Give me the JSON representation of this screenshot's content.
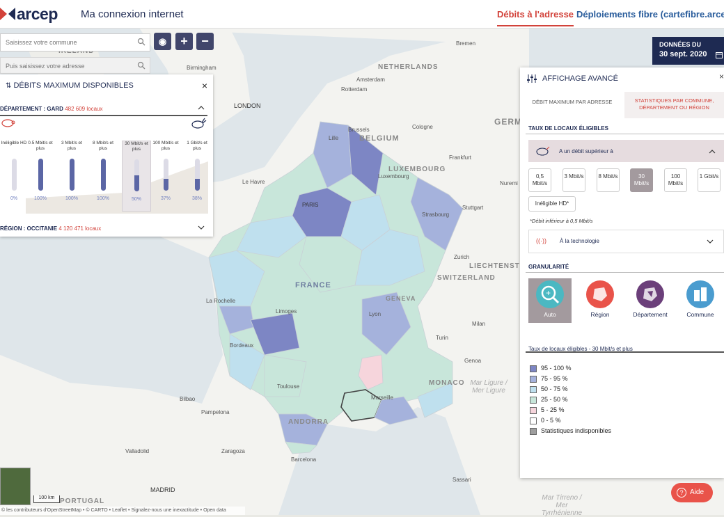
{
  "header": {
    "logo_text": "arcep",
    "app_title": "Ma connexion internet",
    "nav": [
      {
        "label": "Débits à l'adresse"
      },
      {
        "label": "Déploiements fibre (cartefibre.arcep.f"
      }
    ]
  },
  "search": {
    "commune_placeholder": "Saisissez votre commune",
    "address_placeholder": "Puis saisissez votre adresse"
  },
  "map_controls": {
    "locate": "◉",
    "zoom_in": "+",
    "zoom_out": "−"
  },
  "date_badge": {
    "line1": "DONNÉES DU",
    "line2": "30 sept. 2020"
  },
  "left_panel": {
    "title": "DÉBITS MAXIMUM DISPONIBLES",
    "close": "×",
    "department": {
      "label": "DÉPARTEMENT : GARD",
      "count": "482 609 locaux"
    },
    "region": {
      "label": "RÉGION : OCCITANIE",
      "count": "4 120 471 locaux"
    },
    "bars": [
      {
        "label": "Inéligible HD",
        "pct_label": "0%",
        "value": 0
      },
      {
        "label": "0.5 Mbit/s et plus",
        "pct_label": "100%",
        "value": 1
      },
      {
        "label": "3 Mbit/s et plus",
        "pct_label": "100%",
        "value": 1
      },
      {
        "label": "8 Mbit/s et plus",
        "pct_label": "100%",
        "value": 1
      },
      {
        "label": "30 Mbit/s et plus",
        "pct_label": "50%",
        "value": 0.5
      },
      {
        "label": "100 Mbit/s et plus",
        "pct_label": "37%",
        "value": 0.37
      },
      {
        "label": "1 Gbit/s et plus",
        "pct_label": "38%",
        "value": 0.38
      }
    ]
  },
  "right_panel": {
    "title": "AFFICHAGE AVANCÉ",
    "close": "×",
    "tabs": [
      {
        "label": "DÉBIT MAXIMUM PAR ADRESSE"
      },
      {
        "label": "STATISTIQUES PAR COMMUNE, DÉPARTEMENT OU RÉGION"
      }
    ],
    "eligible_title": "TAUX DE LOCAUX ÉLIGIBLES",
    "filter_label": "A un débit supérieur à",
    "speeds": [
      {
        "label": "0,5 Mbit/s"
      },
      {
        "label": "3 Mbit/s"
      },
      {
        "label": "8 Mbit/s"
      },
      {
        "label": "30 Mbit/s"
      },
      {
        "label": "100 Mbit/s"
      },
      {
        "label": "1 Gbit/s"
      }
    ],
    "ineligible_label": "Inéligible HD*",
    "note": "*Débit inférieur à 0,5 Mbit/s",
    "technology_label": "À la technologie",
    "granularity_title": "GRANULARITÉ",
    "granularity": [
      {
        "label": "Auto"
      },
      {
        "label": "Région"
      },
      {
        "label": "Département"
      },
      {
        "label": "Commune"
      }
    ],
    "legend_title": "Taux de locaux éligibles - 30 Mbit/s et plus",
    "legend": [
      {
        "label": "95 - 100 %",
        "color": "#7d86c4"
      },
      {
        "label": "75 - 95 %",
        "color": "#a5b2dc"
      },
      {
        "label": "50 - 75 %",
        "color": "#bfe0ee"
      },
      {
        "label": "25 - 50 %",
        "color": "#c8e6da"
      },
      {
        "label": "5 - 25 %",
        "color": "#f6d5dc"
      },
      {
        "label": "0 - 5 %",
        "color": "#ffffff"
      },
      {
        "label": "Statistiques indisponibles",
        "color": "#9e9e9e"
      }
    ]
  },
  "map_labels": {
    "countries": [
      "IRELAND",
      "NETHERLANDS",
      "BELGIUM",
      "LUXEMBOURG",
      "GERM",
      "LIECHTENSTEIN",
      "SWITZERLAND",
      "FRANCE",
      "MONACO",
      "ANDORRA",
      "PORTUGAL"
    ],
    "cities": [
      "Bremen",
      "Birmingham",
      "LONDON",
      "Amsterdam",
      "Rotterdam",
      "Lille",
      "Brussels",
      "Cologne",
      "Frankfurt",
      "Luxembourg",
      "Nuremi",
      "Le Havre",
      "PARIS",
      "Strasbourg",
      "Stuttgart",
      "Zurich",
      "La Rochelle",
      "Limoges",
      "GENEVA",
      "Lyon",
      "Milan",
      "Turin",
      "Bordeaux",
      "Genoa",
      "Toulouse",
      "Marseille",
      "Bilbao",
      "Pampelona",
      "Valladolid",
      "Zaragoza",
      "Barcelona",
      "MADRID",
      "Sassari"
    ],
    "seas": [
      "Mar Ligure / Mer Ligure",
      "Mar Tirreno / Mer Tyrrhénienne"
    ],
    "scale": "100 km",
    "attribution": "© les contributeurs d'OpenStreetMap • © CARTO • Leaflet • Signalez-nous une inexactitude • Open data"
  },
  "help": {
    "label": "Aide"
  }
}
